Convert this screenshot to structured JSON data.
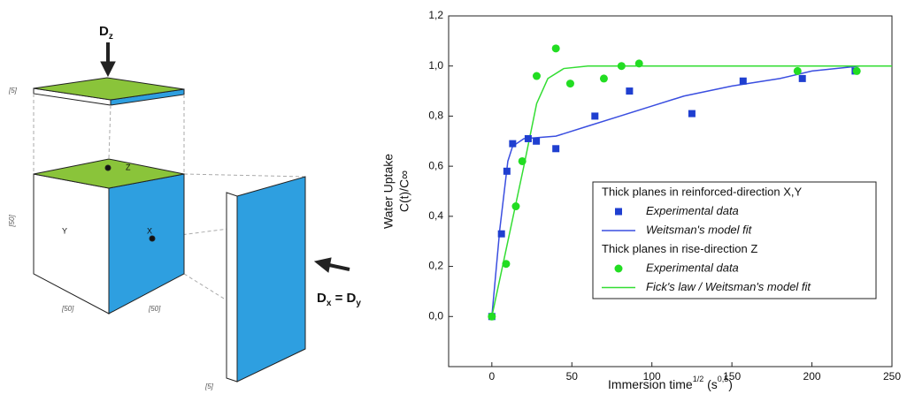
{
  "diagram": {
    "top_arrow": {
      "main": "D",
      "sub": "z"
    },
    "side_arrow": {
      "main1": "D",
      "sub1": "x",
      "eq": " = ",
      "main2": "D",
      "sub2": "y"
    },
    "face_labels": [
      "X",
      "Y",
      "Z"
    ],
    "dimensions": [
      "[5]",
      "[50]",
      "[50]",
      "[50]",
      "[5]"
    ]
  },
  "chart_data": {
    "type": "line",
    "ylabel": [
      "Water Uptake",
      "C(t)/C∞"
    ],
    "xlabel": [
      "Immersion time",
      "1/2",
      " (s",
      "0,5",
      ")"
    ],
    "xlim": [
      -27,
      250
    ],
    "ylim": [
      -0.2,
      1.2
    ],
    "xticks": [
      0,
      50,
      100,
      150,
      200,
      250
    ],
    "yticks": [
      {
        "value": 0,
        "label": "0,0"
      },
      {
        "value": 0.2,
        "label": "0,2"
      },
      {
        "value": 0.4,
        "label": "0,4"
      },
      {
        "value": 0.6,
        "label": "0,6"
      },
      {
        "value": 0.8,
        "label": "0,8"
      },
      {
        "value": 1.0,
        "label": "1,0"
      },
      {
        "value": 1.2,
        "label": "1,2"
      }
    ],
    "legend_titles": [
      "Thick planes in reinforced-direction X,Y",
      "Thick planes in rise-direction Z"
    ],
    "series": [
      {
        "name": "Experimental data",
        "color": "#1f3fd0",
        "marker": "square",
        "group": 0,
        "x": [
          0,
          6,
          9.4,
          13,
          22.7,
          27.8,
          40,
          64.4,
          86,
          125,
          157,
          194,
          227
        ],
        "values": [
          0,
          0.33,
          0.58,
          0.69,
          0.71,
          0.7,
          0.67,
          0.8,
          0.9,
          0.81,
          0.94,
          0.95,
          0.98
        ]
      },
      {
        "name": "Weitsman's model fit",
        "color": "#3a4ee0",
        "marker": "none",
        "group": 0,
        "x": [
          0,
          5,
          10,
          13,
          20,
          40,
          60,
          80,
          100,
          120,
          150,
          180,
          200,
          230,
          250
        ],
        "values": [
          0,
          0.35,
          0.62,
          0.68,
          0.71,
          0.72,
          0.76,
          0.8,
          0.84,
          0.88,
          0.92,
          0.95,
          0.98,
          1.0,
          1.0
        ]
      },
      {
        "name": "Experimental data",
        "color": "#22dd22",
        "marker": "circle",
        "group": 1,
        "x": [
          0,
          8.9,
          15,
          19,
          28,
          40,
          49,
          70,
          81,
          92,
          191,
          228
        ],
        "values": [
          0,
          0.21,
          0.44,
          0.62,
          0.96,
          1.07,
          0.93,
          0.95,
          1.0,
          1.01,
          0.98,
          0.98
        ]
      },
      {
        "name": "Fick's law / Weitsman's model fit",
        "color": "#33dd33",
        "marker": "none",
        "group": 1,
        "x": [
          0,
          10,
          20,
          28,
          35,
          45,
          60,
          250
        ],
        "values": [
          0,
          0.3,
          0.6,
          0.85,
          0.95,
          0.99,
          1.0,
          1.0
        ]
      }
    ]
  }
}
